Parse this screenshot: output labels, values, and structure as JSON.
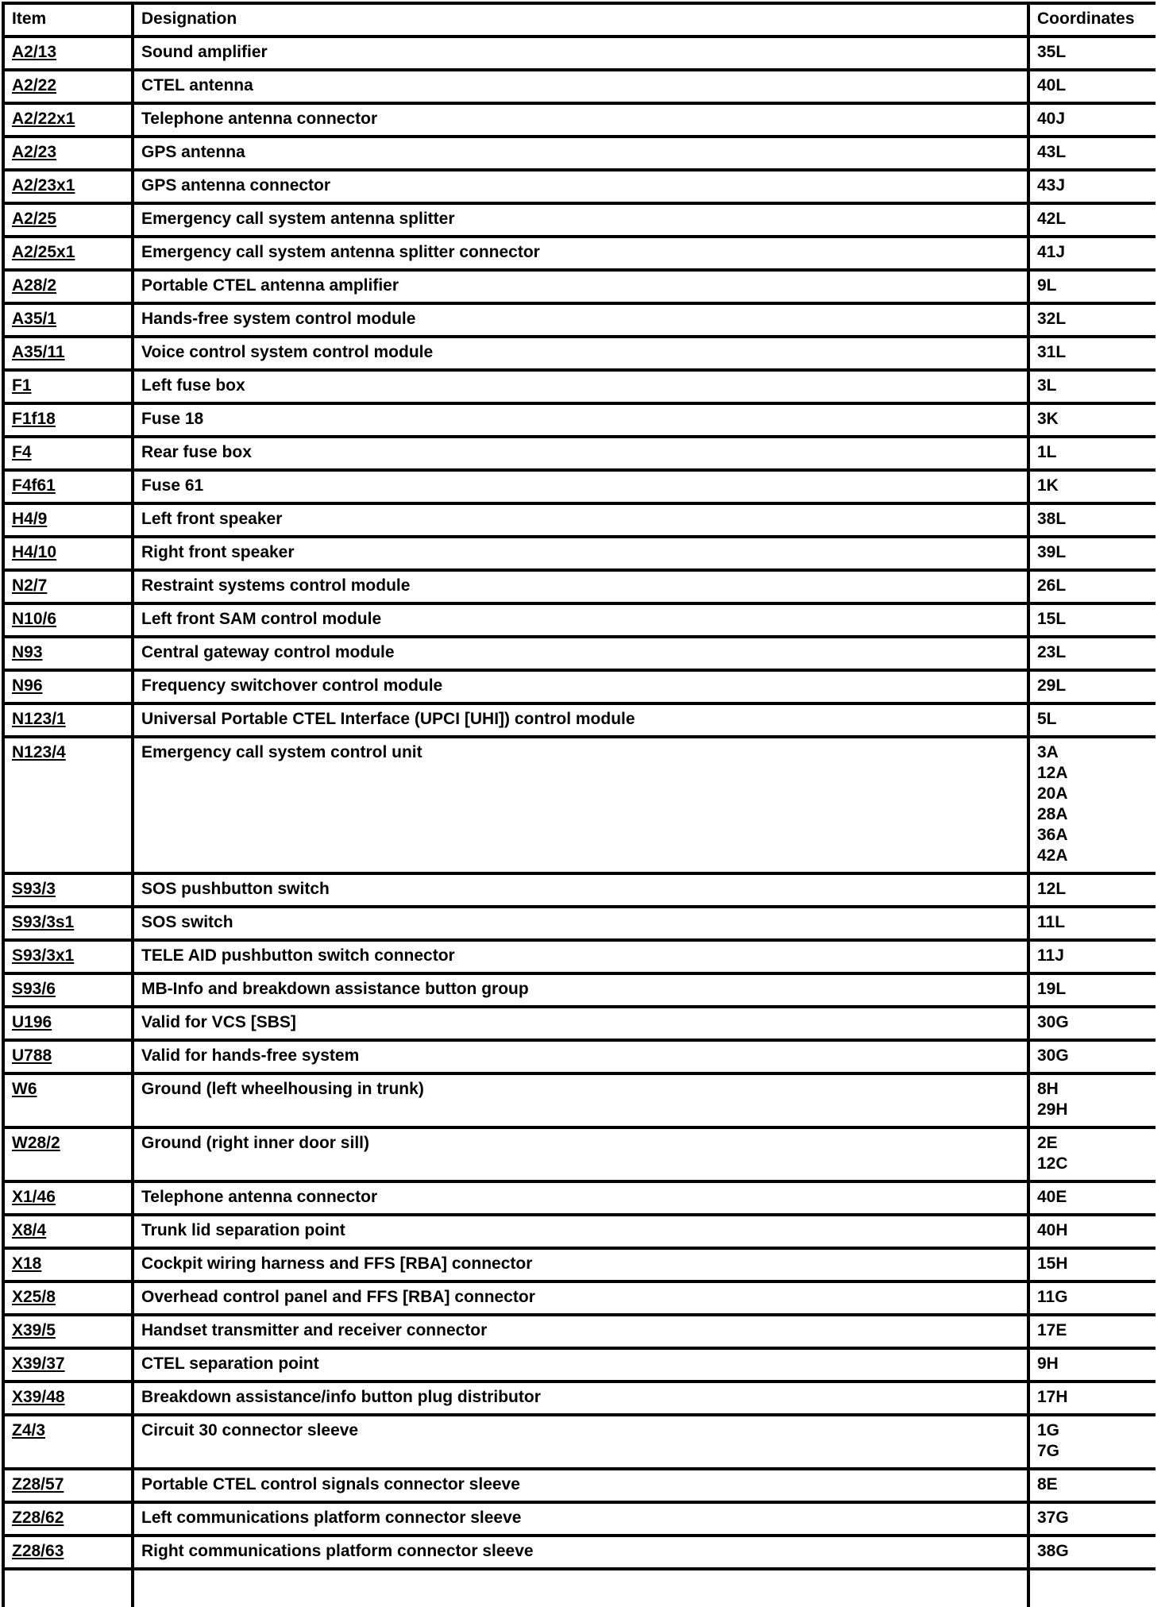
{
  "table": {
    "headers": {
      "item": "Item",
      "designation": "Designation",
      "coordinates": "Coordinates"
    },
    "rows": [
      {
        "item": "A2/13",
        "designation": "Sound amplifier",
        "coordinates": [
          "35L"
        ]
      },
      {
        "item": "A2/22",
        "designation": "CTEL antenna",
        "coordinates": [
          "40L"
        ]
      },
      {
        "item": "A2/22x1",
        "designation": "Telephone antenna connector",
        "coordinates": [
          "40J"
        ]
      },
      {
        "item": "A2/23",
        "designation": "GPS antenna",
        "coordinates": [
          "43L"
        ]
      },
      {
        "item": "A2/23x1",
        "designation": "GPS antenna connector",
        "coordinates": [
          "43J"
        ]
      },
      {
        "item": "A2/25",
        "designation": "Emergency call system antenna splitter",
        "coordinates": [
          "42L"
        ]
      },
      {
        "item": "A2/25x1",
        "designation": "Emergency call system antenna splitter connector",
        "coordinates": [
          "41J"
        ]
      },
      {
        "item": "A28/2",
        "designation": "Portable CTEL antenna amplifier",
        "coordinates": [
          "9L"
        ]
      },
      {
        "item": "A35/1",
        "designation": "Hands-free system control module",
        "coordinates": [
          "32L"
        ]
      },
      {
        "item": "A35/11",
        "designation": "Voice control system control module",
        "coordinates": [
          "31L"
        ]
      },
      {
        "item": "F1",
        "designation": "Left fuse box",
        "coordinates": [
          "3L"
        ]
      },
      {
        "item": "F1f18",
        "designation": "Fuse 18",
        "coordinates": [
          "3K"
        ]
      },
      {
        "item": "F4",
        "designation": "Rear fuse box",
        "coordinates": [
          "1L"
        ]
      },
      {
        "item": "F4f61",
        "designation": "Fuse 61",
        "coordinates": [
          "1K"
        ]
      },
      {
        "item": "H4/9",
        "designation": "Left front speaker",
        "coordinates": [
          "38L"
        ]
      },
      {
        "item": "H4/10",
        "designation": "Right front speaker",
        "coordinates": [
          "39L"
        ]
      },
      {
        "item": "N2/7",
        "designation": "Restraint systems control module",
        "coordinates": [
          "26L"
        ]
      },
      {
        "item": "N10/6",
        "designation": "Left front SAM control module",
        "coordinates": [
          "15L"
        ]
      },
      {
        "item": "N93",
        "designation": "Central gateway control module",
        "coordinates": [
          "23L"
        ]
      },
      {
        "item": "N96",
        "designation": "Frequency switchover control module",
        "coordinates": [
          "29L"
        ]
      },
      {
        "item": "N123/1",
        "designation": "Universal Portable CTEL Interface (UPCI [UHI]) control module",
        "coordinates": [
          "5L"
        ]
      },
      {
        "item": "N123/4",
        "designation": "Emergency call system control unit",
        "coordinates": [
          "3A",
          "12A",
          "20A",
          "28A",
          "36A",
          "42A"
        ]
      },
      {
        "item": "S93/3",
        "designation": "SOS pushbutton switch",
        "coordinates": [
          "12L"
        ]
      },
      {
        "item": "S93/3s1",
        "designation": "SOS switch",
        "coordinates": [
          "11L"
        ]
      },
      {
        "item": "S93/3x1",
        "designation": "TELE AID pushbutton switch connector",
        "coordinates": [
          "11J"
        ]
      },
      {
        "item": "S93/6",
        "designation": "MB-Info and breakdown assistance button group",
        "coordinates": [
          "19L"
        ]
      },
      {
        "item": "U196",
        "designation": "Valid for VCS [SBS]",
        "coordinates": [
          "30G"
        ]
      },
      {
        "item": "U788",
        "designation": "Valid for hands-free system",
        "coordinates": [
          "30G"
        ]
      },
      {
        "item": "W6",
        "designation": "Ground (left wheelhousing in trunk)",
        "coordinates": [
          "8H",
          "29H"
        ]
      },
      {
        "item": "W28/2",
        "designation": "Ground (right inner door sill)",
        "coordinates": [
          "2E",
          "12C"
        ]
      },
      {
        "item": "X1/46",
        "designation": "Telephone antenna connector",
        "coordinates": [
          "40E"
        ]
      },
      {
        "item": "X8/4",
        "designation": "Trunk lid separation point",
        "coordinates": [
          "40H"
        ]
      },
      {
        "item": "X18",
        "designation": "Cockpit wiring harness and FFS [RBA] connector",
        "coordinates": [
          "15H"
        ]
      },
      {
        "item": "X25/8",
        "designation": "Overhead control panel and FFS [RBA] connector",
        "coordinates": [
          "11G"
        ]
      },
      {
        "item": "X39/5",
        "designation": "Handset transmitter and receiver connector",
        "coordinates": [
          "17E"
        ]
      },
      {
        "item": "X39/37",
        "designation": "CTEL separation point",
        "coordinates": [
          "9H"
        ]
      },
      {
        "item": "X39/48",
        "designation": "Breakdown assistance/info button plug distributor",
        "coordinates": [
          "17H"
        ]
      },
      {
        "item": "Z4/3",
        "designation": "Circuit 30 connector sleeve",
        "coordinates": [
          "1G",
          "7G"
        ]
      },
      {
        "item": "Z28/57",
        "designation": "Portable CTEL control signals connector sleeve",
        "coordinates": [
          "8E"
        ]
      },
      {
        "item": "Z28/62",
        "designation": "Left communications platform connector sleeve",
        "coordinates": [
          "37G"
        ]
      },
      {
        "item": "Z28/63",
        "designation": "Right communications platform connector sleeve",
        "coordinates": [
          "38G"
        ]
      }
    ]
  }
}
